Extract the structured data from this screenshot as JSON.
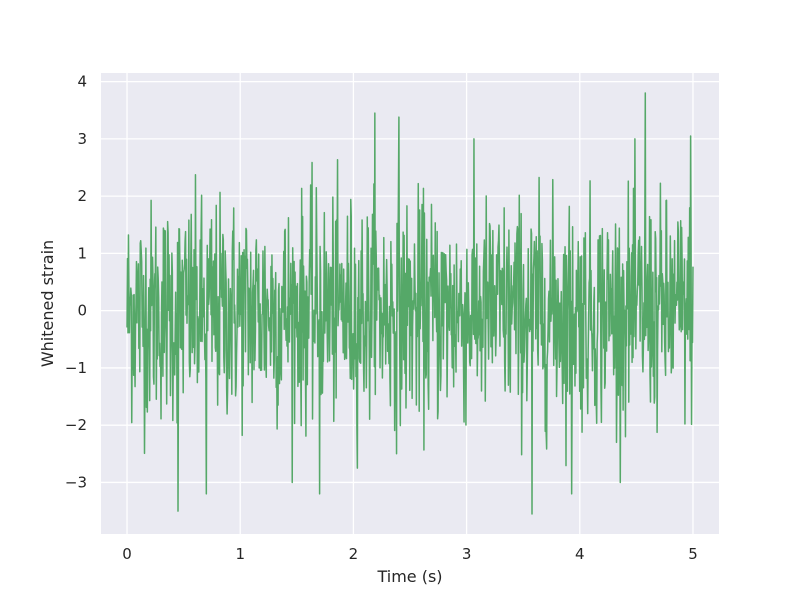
{
  "chart_data": {
    "type": "line",
    "xlabel": "Time (s)",
    "ylabel": "Whitened strain",
    "xlim": [
      -0.23,
      5.23
    ],
    "ylim": [
      -3.9,
      4.15
    ],
    "x_ticks": [
      0,
      1,
      2,
      3,
      4,
      5
    ],
    "x_tick_labels": [
      "0",
      "1",
      "2",
      "3",
      "4",
      "5"
    ],
    "y_ticks": [
      -3,
      -2,
      -1,
      0,
      1,
      2,
      3,
      4
    ],
    "y_tick_labels": [
      "−3",
      "−2",
      "−1",
      "0",
      "1",
      "2",
      "3",
      "4"
    ],
    "grid": true,
    "background_color": "#eaeaf2",
    "grid_color": "#ffffff",
    "series": [
      {
        "color": "#55a868",
        "x_start": 0,
        "x_end": 5,
        "sample_count": 1200,
        "approx_std": 0.95,
        "notable_extrema": [
          {
            "x": 0.45,
            "y": -3.5
          },
          {
            "x": 0.7,
            "y": -3.2
          },
          {
            "x": 1.7,
            "y": -3.2
          },
          {
            "x": 2.19,
            "y": 3.45
          },
          {
            "x": 2.4,
            "y": 3.38
          },
          {
            "x": 3.58,
            "y": -3.55
          },
          {
            "x": 3.93,
            "y": -3.2
          },
          {
            "x": 4.58,
            "y": 3.8
          },
          {
            "x": 4.98,
            "y": 3.05
          }
        ]
      }
    ]
  }
}
